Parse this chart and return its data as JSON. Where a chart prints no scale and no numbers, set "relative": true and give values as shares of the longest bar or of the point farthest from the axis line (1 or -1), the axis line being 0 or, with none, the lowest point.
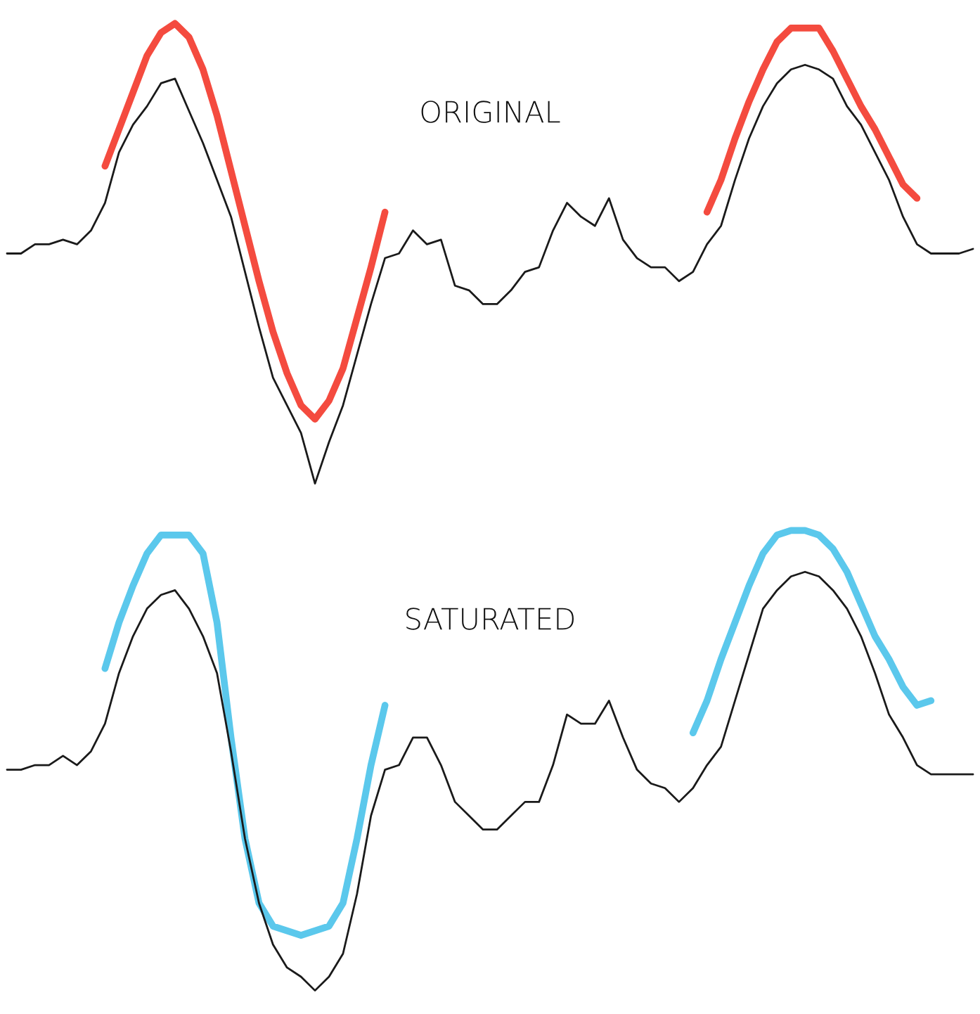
{
  "chart_data": [
    {
      "type": "line",
      "relative": true,
      "title": "ORIGINAL",
      "legend": false,
      "grid": false,
      "categories": [
        null,
        null,
        null,
        null,
        null,
        null,
        null,
        null,
        null,
        null,
        null,
        null,
        null,
        null,
        null,
        null,
        null,
        null,
        null,
        null,
        null,
        null,
        null,
        null,
        null,
        null,
        null,
        null,
        null,
        null,
        null,
        null,
        null,
        null,
        null,
        null,
        null,
        null,
        null,
        null,
        null,
        null,
        null,
        null,
        null,
        null,
        null,
        null,
        null,
        null,
        null,
        null,
        null,
        null,
        null,
        null,
        null,
        null,
        null,
        null,
        null,
        null,
        null,
        null,
        null,
        null,
        null,
        null,
        null,
        null
      ],
      "series": [
        {
          "color": "#1a1a1a",
          "values": [
            0.5,
            0.5,
            0.52,
            0.52,
            0.53,
            0.52,
            0.55,
            0.61,
            0.72,
            0.78,
            0.82,
            0.87,
            0.88,
            0.81,
            0.74,
            0.66,
            0.58,
            0.46,
            0.34,
            0.23,
            0.17,
            0.11,
            0.0,
            0.09,
            0.17,
            0.28,
            0.39,
            0.49,
            0.5,
            0.55,
            0.52,
            0.53,
            0.43,
            0.42,
            0.39,
            0.39,
            0.42,
            0.46,
            0.47,
            0.55,
            0.61,
            0.58,
            0.56,
            0.62,
            0.53,
            0.49,
            0.47,
            0.47,
            0.44,
            0.46,
            0.52,
            0.56,
            0.66,
            0.75,
            0.82,
            0.87,
            0.9,
            0.91,
            0.9,
            0.88,
            0.82,
            0.78,
            0.72,
            0.66,
            0.58,
            0.52,
            0.5,
            0.5,
            0.5,
            0.51
          ]
        },
        {
          "color": "#f44b3f",
          "values": [
            null,
            null,
            null,
            null,
            null,
            null,
            null,
            0.69,
            0.77,
            0.85,
            0.93,
            0.98,
            1.0,
            0.97,
            0.9,
            0.8,
            0.68,
            0.56,
            0.44,
            0.33,
            0.24,
            0.17,
            0.14,
            0.18,
            0.25,
            0.36,
            0.47,
            0.59,
            null,
            null,
            null,
            null,
            null,
            null,
            null,
            null,
            null,
            null,
            null,
            null,
            null,
            null,
            null,
            null,
            null,
            null,
            null,
            null,
            null,
            null,
            0.59,
            0.66,
            0.75,
            0.83,
            0.9,
            0.96,
            0.99,
            0.99,
            0.99,
            0.94,
            0.88,
            0.82,
            0.77,
            0.71,
            0.65,
            0.62,
            null,
            null,
            null,
            null
          ]
        }
      ]
    },
    {
      "type": "line",
      "relative": true,
      "title": "SATURATED",
      "legend": false,
      "grid": false,
      "categories": [
        null,
        null,
        null,
        null,
        null,
        null,
        null,
        null,
        null,
        null,
        null,
        null,
        null,
        null,
        null,
        null,
        null,
        null,
        null,
        null,
        null,
        null,
        null,
        null,
        null,
        null,
        null,
        null,
        null,
        null,
        null,
        null,
        null,
        null,
        null,
        null,
        null,
        null,
        null,
        null,
        null,
        null,
        null,
        null,
        null,
        null,
        null,
        null,
        null,
        null,
        null,
        null,
        null,
        null,
        null,
        null,
        null,
        null,
        null,
        null,
        null,
        null,
        null,
        null,
        null,
        null,
        null,
        null,
        null,
        null
      ],
      "series": [
        {
          "color": "#1a1a1a",
          "values": [
            0.48,
            0.48,
            0.49,
            0.49,
            0.51,
            0.49,
            0.52,
            0.58,
            0.69,
            0.77,
            0.83,
            0.86,
            0.87,
            0.83,
            0.77,
            0.69,
            0.52,
            0.33,
            0.19,
            0.1,
            0.05,
            0.03,
            0.0,
            0.03,
            0.08,
            0.21,
            0.38,
            0.48,
            0.49,
            0.55,
            0.55,
            0.49,
            0.41,
            0.38,
            0.35,
            0.35,
            0.38,
            0.41,
            0.41,
            0.49,
            0.6,
            0.58,
            0.58,
            0.63,
            0.55,
            0.48,
            0.45,
            0.44,
            0.41,
            0.44,
            0.49,
            0.53,
            0.63,
            0.73,
            0.83,
            0.87,
            0.9,
            0.91,
            0.9,
            0.87,
            0.83,
            0.77,
            0.69,
            0.6,
            0.55,
            0.49,
            0.47,
            0.47,
            0.47,
            0.47
          ]
        },
        {
          "color": "#5bc8ec",
          "values": [
            null,
            null,
            null,
            null,
            null,
            null,
            null,
            0.7,
            0.8,
            0.88,
            0.95,
            0.99,
            0.99,
            0.99,
            0.95,
            0.8,
            0.55,
            0.33,
            0.19,
            0.14,
            0.13,
            0.12,
            0.13,
            0.14,
            0.19,
            0.33,
            0.49,
            0.62,
            null,
            null,
            null,
            null,
            null,
            null,
            null,
            null,
            null,
            null,
            null,
            null,
            null,
            null,
            null,
            null,
            null,
            null,
            null,
            null,
            null,
            0.56,
            0.63,
            0.72,
            0.8,
            0.88,
            0.95,
            0.99,
            1.0,
            1.0,
            0.99,
            0.96,
            0.91,
            0.84,
            0.77,
            0.72,
            0.66,
            0.62,
            0.63,
            null,
            null,
            null
          ]
        }
      ]
    }
  ]
}
